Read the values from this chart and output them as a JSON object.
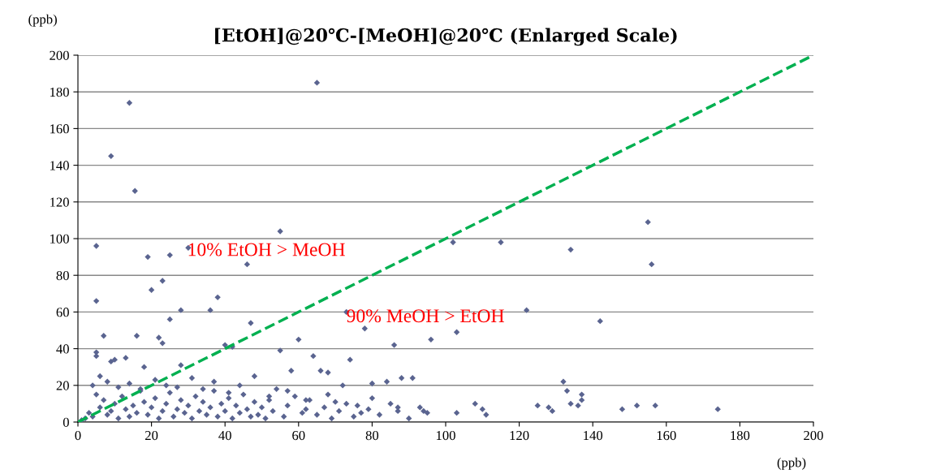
{
  "chart_data": {
    "type": "scatter",
    "title": "[EtOH]@20℃-[MeOH]@20℃ (Enlarged Scale)",
    "xlabel": "(ppb)",
    "ylabel": "(ppb)",
    "xlim": [
      0,
      200
    ],
    "ylim": [
      0,
      200
    ],
    "xticks": [
      0,
      20,
      40,
      60,
      80,
      100,
      120,
      140,
      160,
      180,
      200
    ],
    "yticks": [
      0,
      20,
      40,
      60,
      80,
      100,
      120,
      140,
      160,
      180,
      200
    ],
    "grid": "y",
    "series": [
      {
        "color": "#5a6490",
        "marker": "diamond",
        "x": [
          65,
          14,
          9,
          15.5,
          5,
          55,
          19,
          25,
          30,
          23,
          20,
          46,
          5,
          38,
          36,
          28,
          25,
          102,
          115,
          134,
          155,
          156,
          73,
          122,
          142,
          78,
          103,
          96,
          60,
          47,
          7,
          16,
          5,
          5,
          22,
          23,
          13,
          10,
          9,
          18,
          28,
          40,
          42,
          55,
          64,
          74,
          86,
          84,
          88,
          91,
          58,
          66,
          68,
          72,
          80,
          108,
          110,
          111,
          103,
          125,
          128,
          129,
          132,
          133,
          134,
          136,
          137,
          137,
          148,
          152,
          157,
          174,
          1,
          2,
          3,
          4,
          5,
          6,
          7,
          8,
          9,
          10,
          11,
          12,
          13,
          14,
          15,
          16,
          17,
          18,
          19,
          20,
          21,
          22,
          23,
          24,
          25,
          26,
          27,
          28,
          29,
          30,
          31,
          32,
          33,
          34,
          35,
          36,
          37,
          38,
          39,
          40,
          41,
          42,
          43,
          44,
          45,
          46,
          47,
          48,
          49,
          50,
          51,
          52,
          53,
          54,
          56,
          57,
          59,
          61,
          62,
          63,
          65,
          67,
          69,
          70,
          71,
          75,
          76,
          77,
          79,
          82,
          85,
          87,
          90,
          93,
          95,
          4,
          6,
          8,
          11,
          14,
          17,
          21,
          24,
          27,
          31,
          34,
          37,
          41,
          44,
          48,
          52,
          57,
          62,
          68,
          73,
          80,
          87,
          94
        ],
        "values": [
          185,
          174,
          145,
          126,
          96,
          104,
          90,
          91,
          95,
          77,
          72,
          86,
          66,
          68,
          61,
          61,
          56,
          98,
          98,
          94,
          109,
          86,
          60,
          61,
          55,
          51,
          49,
          45,
          45,
          54,
          47,
          47,
          38,
          36,
          46,
          43,
          35,
          34,
          33,
          30,
          31,
          42,
          41,
          39,
          36,
          34,
          42,
          22,
          24,
          24,
          28,
          28,
          27,
          20,
          21,
          10,
          7,
          4,
          5,
          9,
          8,
          6,
          22,
          17,
          10,
          9,
          12,
          15,
          7,
          9,
          9,
          7,
          1,
          2,
          5,
          3,
          15,
          8,
          12,
          4,
          6,
          10,
          2,
          14,
          7,
          3,
          9,
          5,
          18,
          11,
          4,
          8,
          13,
          2,
          6,
          10,
          16,
          3,
          7,
          12,
          5,
          9,
          2,
          14,
          6,
          11,
          4,
          8,
          17,
          3,
          10,
          6,
          13,
          2,
          9,
          5,
          15,
          7,
          3,
          11,
          4,
          8,
          2,
          12,
          6,
          18,
          3,
          9,
          14,
          5,
          7,
          12,
          4,
          8,
          2,
          11,
          6,
          3,
          9,
          5,
          7,
          4,
          10,
          6,
          2,
          8,
          5,
          20,
          25,
          22,
          19,
          21,
          17,
          23,
          20,
          19,
          24,
          18,
          22,
          16,
          20,
          25,
          14,
          17,
          12,
          15,
          10,
          13,
          8,
          6
        ]
      },
      {
        "color": "#00b050",
        "type": "line",
        "line_style": "dashed",
        "x": [
          0,
          200
        ],
        "values": [
          0,
          200
        ]
      }
    ],
    "annotations": [
      "10% EtOH > MeOH",
      "90% MeOH > EtOH"
    ]
  }
}
